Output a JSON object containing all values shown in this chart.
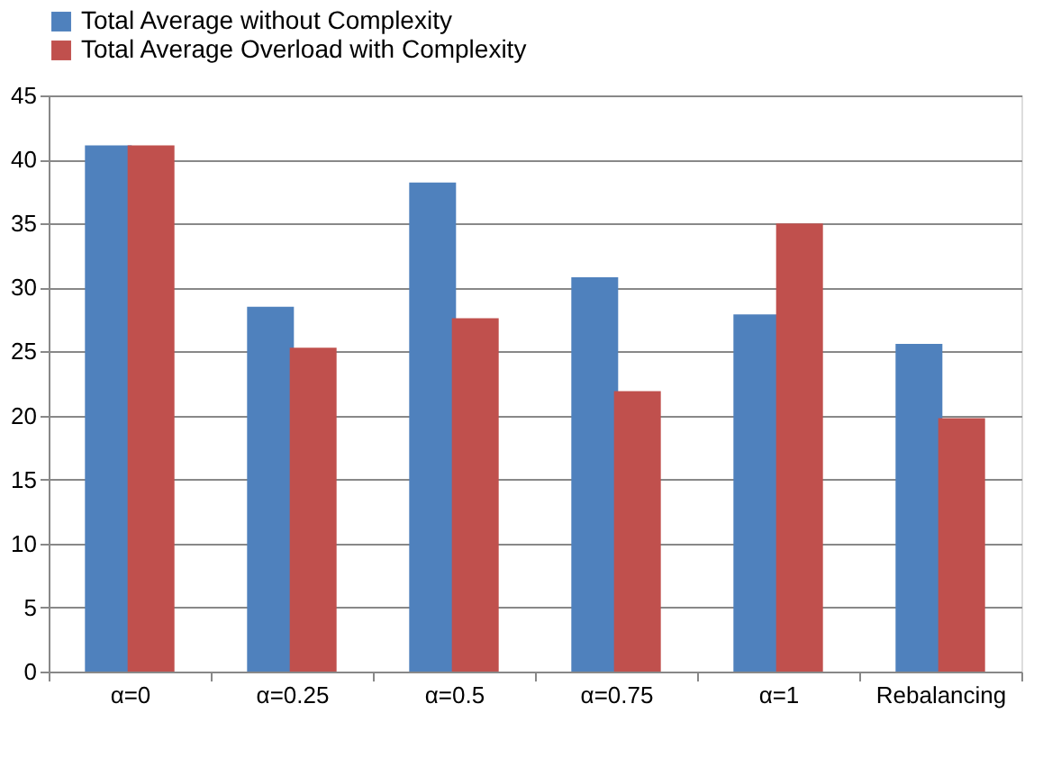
{
  "chart_data": {
    "type": "bar",
    "categories": [
      "α=0",
      "α=0.25",
      "α=0.5",
      "α=0.75",
      "α=1",
      "Rebalancing"
    ],
    "series": [
      {
        "name": "Total Average without Complexity",
        "color": "#4f81bd",
        "values": [
          41.1,
          28.5,
          38.2,
          30.8,
          27.9,
          25.6
        ]
      },
      {
        "name": "Total Average Overload with Complexity",
        "color": "#c0504d",
        "values": [
          41.1,
          25.3,
          27.6,
          21.9,
          35.0,
          19.8
        ]
      }
    ],
    "ylim": [
      0,
      45
    ],
    "yticks": [
      0,
      5,
      10,
      15,
      20,
      25,
      30,
      35,
      40,
      45
    ],
    "grid": "y",
    "legend": "top"
  }
}
